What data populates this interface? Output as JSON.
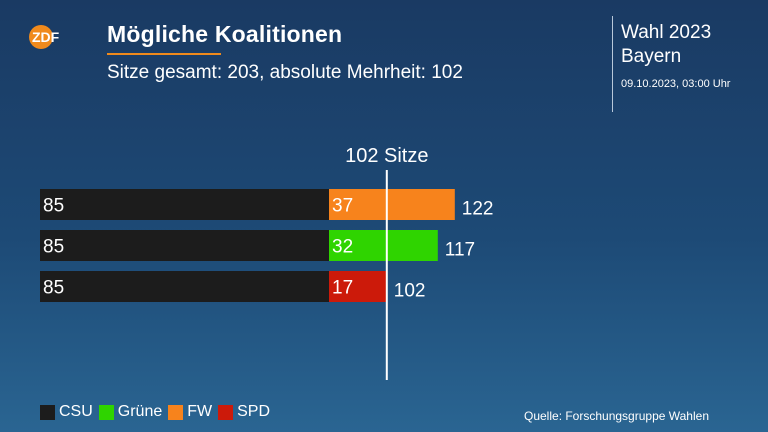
{
  "header": {
    "logo_text": "ZDF",
    "title": "Mögliche Koalitionen",
    "subtitle": "Sitze gesamt: 203, absolute Mehrheit: 102",
    "election": "Wahl 2023",
    "region": "Bayern",
    "timestamp": "09.10.2023, 03:00 Uhr"
  },
  "chart_data": {
    "type": "bar",
    "orientation": "horizontal",
    "stacked": true,
    "threshold": 102,
    "threshold_label": "102 Sitze",
    "rows": [
      {
        "segments": [
          {
            "party": "CSU",
            "value": 85
          },
          {
            "party": "FW",
            "value": 37
          }
        ],
        "total": 122
      },
      {
        "segments": [
          {
            "party": "CSU",
            "value": 85
          },
          {
            "party": "Grüne",
            "value": 32
          }
        ],
        "total": 117
      },
      {
        "segments": [
          {
            "party": "CSU",
            "value": 85
          },
          {
            "party": "SPD",
            "value": 17
          }
        ],
        "total": 102
      }
    ],
    "colors": {
      "CSU": "#1c1c1c",
      "Grüne": "#2fd400",
      "FW": "#f7831c",
      "SPD": "#cc1a0a"
    },
    "legend": [
      "CSU",
      "Grüne",
      "FW",
      "SPD"
    ],
    "legend_placement": "bottom-left"
  },
  "footer": {
    "source": "Quelle: Forschungsgruppe Wahlen"
  }
}
